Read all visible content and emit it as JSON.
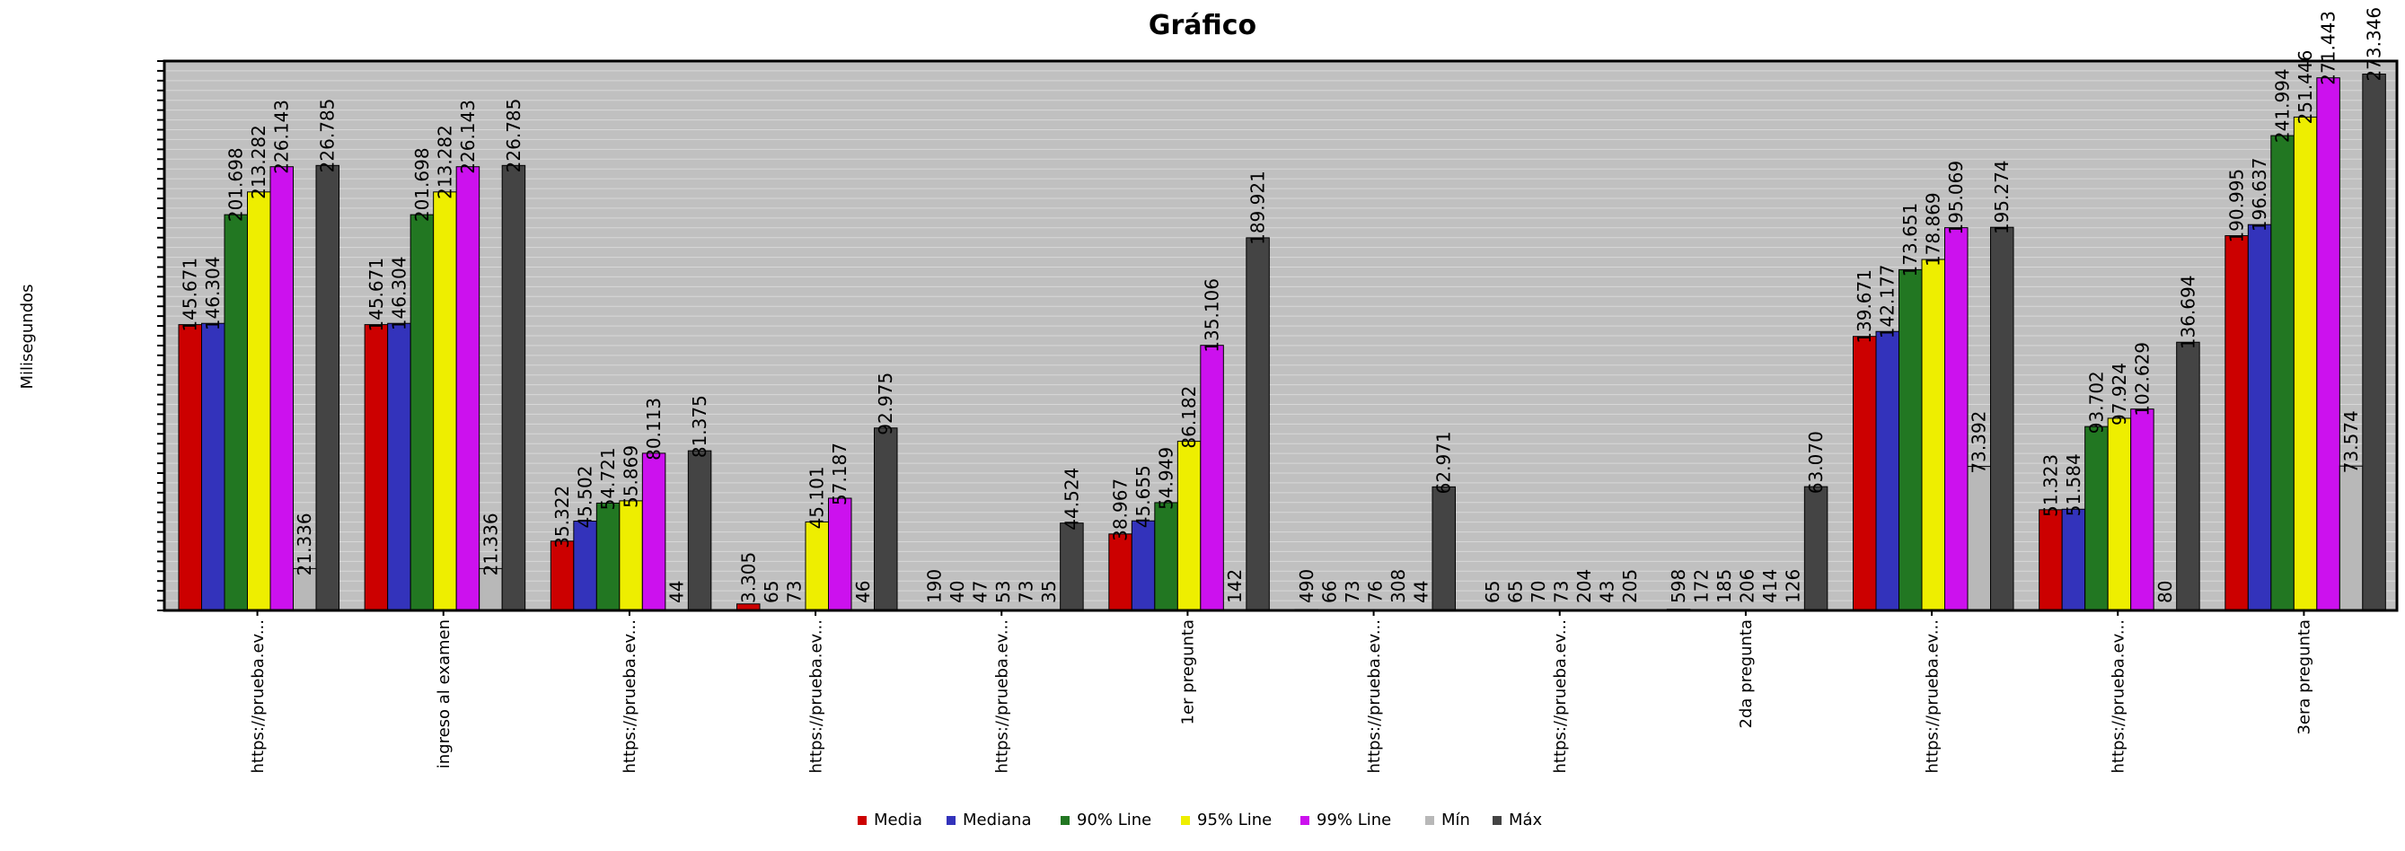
{
  "chart_data": {
    "type": "bar",
    "title": "Gráfico",
    "xlabel": "",
    "ylabel": "Milisegundos",
    "ylim": [
      0,
      280000
    ],
    "grid": true,
    "legend_position": "bottom",
    "categories": [
      "https://prueba.ev...",
      "ingreso al examen",
      "https://prueba.ev...",
      "https://prueba.ev...",
      "https://prueba.ev...",
      "1er pregunta",
      "https://prueba.ev...",
      "https://prueba.ev...",
      "2da pregunta",
      "https://prueba.ev...",
      "https://prueba.ev...",
      "3era pregunta"
    ],
    "series": [
      {
        "name": "Media",
        "color": "#cc0000",
        "values": [
          145671,
          145671,
          35322,
          3305,
          190,
          38967,
          490,
          65,
          598,
          139671,
          51323,
          190995
        ],
        "labels": [
          "145.671",
          "145.671",
          "35.322",
          "3.305",
          "190",
          "38.967",
          "490",
          "65",
          "598",
          "139.671",
          "51.323",
          "190.995"
        ]
      },
      {
        "name": "Mediana",
        "color": "#3333bb",
        "values": [
          146304,
          146304,
          45502,
          65,
          40,
          45655,
          66,
          65,
          172,
          142177,
          51584,
          196637
        ],
        "labels": [
          "146.304",
          "146.304",
          "45.502",
          "65",
          "40",
          "45.655",
          "66",
          "65",
          "172",
          "142.177",
          "51.584",
          "196.637"
        ]
      },
      {
        "name": "90% Line",
        "color": "#227722",
        "values": [
          201698,
          201698,
          54721,
          73,
          47,
          54949,
          73,
          70,
          185,
          173651,
          93702,
          241994
        ],
        "labels": [
          "201.698",
          "201.698",
          "54.721",
          "73",
          "47",
          "54.949",
          "73",
          "70",
          "185",
          "173.651",
          "93.702",
          "241.994"
        ]
      },
      {
        "name": "95% Line",
        "color": "#eeee00",
        "values": [
          213282,
          213282,
          55869,
          45101,
          53,
          86182,
          76,
          73,
          206,
          178869,
          97924,
          251446
        ],
        "labels": [
          "213.282",
          "213.282",
          "55.869",
          "45.101",
          "53",
          "86.182",
          "76",
          "73",
          "206",
          "178.869",
          "97.924",
          "251.446"
        ]
      },
      {
        "name": "99% Line",
        "color": "#cc11ee",
        "values": [
          226143,
          226143,
          80113,
          57187,
          73,
          135106,
          308,
          204,
          414,
          195069,
          102629,
          271443
        ],
        "labels": [
          "226.143",
          "226.143",
          "80.113",
          "57.187",
          "73",
          "135.106",
          "308",
          "204",
          "414",
          "195.069",
          "102.629",
          "271.443"
        ]
      },
      {
        "name": "Mín",
        "color": "#b8b8b8",
        "values": [
          21336,
          21336,
          44,
          46,
          35,
          142,
          44,
          43,
          126,
          73392,
          80,
          73574
        ],
        "labels": [
          "21.336",
          "21.336",
          "44",
          "46",
          "35",
          "142",
          "44",
          "43",
          "126",
          "73.392",
          "80",
          "73.574"
        ]
      },
      {
        "name": "Máx",
        "color": "#444444",
        "values": [
          226785,
          226785,
          81375,
          92975,
          44524,
          189921,
          62971,
          205,
          63070,
          195274,
          136694,
          273346
        ],
        "labels": [
          "226.785",
          "226.785",
          "81.375",
          "92.975",
          "44.524",
          "189.921",
          "62.971",
          "205",
          "63.070",
          "195.274",
          "136.694",
          "273.346"
        ]
      }
    ]
  },
  "colors": {
    "plot_background": "#c0c0c0",
    "gridline": "#d8d8d8"
  }
}
